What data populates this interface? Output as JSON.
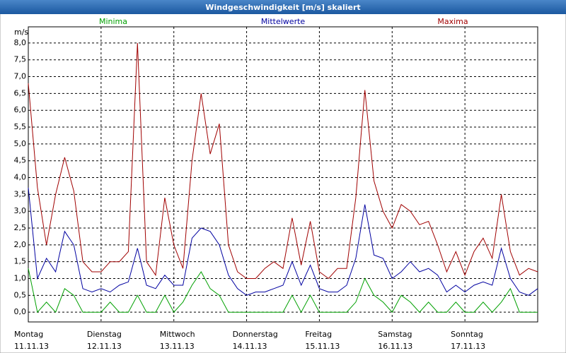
{
  "chart_data": {
    "type": "line",
    "title": "Windgeschwindigkeit [m/s] skaliert",
    "y_label": "m/s",
    "ylim": [
      -0.29,
      8.48
    ],
    "yticks": [
      {
        "value": 0,
        "label": "0,0"
      },
      {
        "value": 0.5,
        "label": "0,5"
      },
      {
        "value": 1,
        "label": "1,0"
      },
      {
        "value": 1.5,
        "label": "1,5"
      },
      {
        "value": 2,
        "label": "2,0"
      },
      {
        "value": 2.5,
        "label": "2,5"
      },
      {
        "value": 3,
        "label": "3,0"
      },
      {
        "value": 3.5,
        "label": "3,5"
      },
      {
        "value": 4,
        "label": "4,0"
      },
      {
        "value": 4.5,
        "label": "4,5"
      },
      {
        "value": 5,
        "label": "5,0"
      },
      {
        "value": 5.5,
        "label": "5,5"
      },
      {
        "value": 6,
        "label": "6,0"
      },
      {
        "value": 6.5,
        "label": "6,5"
      },
      {
        "value": 7,
        "label": "7,0"
      },
      {
        "value": 7.5,
        "label": "7,5"
      },
      {
        "value": 8,
        "label": "8,0"
      }
    ],
    "grid": true,
    "days": [
      {
        "name": "Montag",
        "date": "11.11.13"
      },
      {
        "name": "Dienstag",
        "date": "12.11.13"
      },
      {
        "name": "Mittwoch",
        "date": "13.11.13"
      },
      {
        "name": "Donnerstag",
        "date": "14.11.13"
      },
      {
        "name": "Freitag",
        "date": "15.11.13"
      },
      {
        "name": "Samstag",
        "date": "16.11.13"
      },
      {
        "name": "Sonntag",
        "date": "17.11.13"
      }
    ],
    "series": [
      {
        "name": "Minima",
        "color": "#00a000",
        "values": [
          1.3,
          0.0,
          0.3,
          0.0,
          0.7,
          0.5,
          0.0,
          0.0,
          0.0,
          0.3,
          0.0,
          0.0,
          0.5,
          0.0,
          0.0,
          0.5,
          0.0,
          0.3,
          0.8,
          1.2,
          0.7,
          0.5,
          0.0,
          0.0,
          0.0,
          0.0,
          0.0,
          0.0,
          0.0,
          0.5,
          0.0,
          0.5,
          0.0,
          0.0,
          0.0,
          0.0,
          0.3,
          1.0,
          0.5,
          0.3,
          0.0,
          0.5,
          0.3,
          0.0,
          0.3,
          0.0,
          0.0,
          0.3,
          0.0,
          0.0,
          0.3,
          0.0,
          0.3,
          0.7,
          0.0,
          0.0,
          0.0
        ]
      },
      {
        "name": "Mittelwerte",
        "color": "#0000a0",
        "values": [
          3.7,
          1.0,
          1.6,
          1.2,
          2.4,
          2.0,
          0.7,
          0.6,
          0.7,
          0.6,
          0.8,
          0.9,
          1.9,
          0.8,
          0.7,
          1.1,
          0.8,
          0.8,
          2.2,
          2.5,
          2.4,
          2.0,
          1.1,
          0.7,
          0.5,
          0.6,
          0.6,
          0.7,
          0.8,
          1.5,
          0.8,
          1.4,
          0.7,
          0.6,
          0.6,
          0.8,
          1.6,
          3.2,
          1.7,
          1.6,
          1.0,
          1.2,
          1.5,
          1.2,
          1.3,
          1.1,
          0.6,
          0.8,
          0.6,
          0.8,
          0.9,
          0.8,
          1.9,
          1.0,
          0.6,
          0.5,
          0.7
        ]
      },
      {
        "name": "Maxima",
        "color": "#a00000",
        "values": [
          6.8,
          3.7,
          2.0,
          3.5,
          4.6,
          3.6,
          1.5,
          1.2,
          1.2,
          1.5,
          1.5,
          1.8,
          8.0,
          1.5,
          1.1,
          3.4,
          2.0,
          1.3,
          4.5,
          6.5,
          4.7,
          5.6,
          2.0,
          1.2,
          1.0,
          1.0,
          1.3,
          1.5,
          1.3,
          2.8,
          1.4,
          2.7,
          1.2,
          1.0,
          1.3,
          1.3,
          3.4,
          6.6,
          3.9,
          3.0,
          2.5,
          3.2,
          3.0,
          2.6,
          2.7,
          2.0,
          1.2,
          1.8,
          1.1,
          1.8,
          2.2,
          1.6,
          3.5,
          1.8,
          1.1,
          1.3,
          1.2
        ]
      }
    ]
  }
}
